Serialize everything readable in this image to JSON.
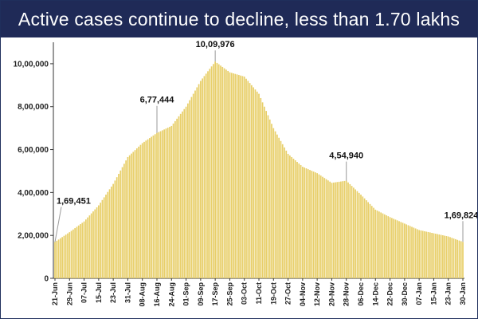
{
  "banner": {
    "title": "Active cases continue to decline, less than 1.70 lakhs"
  },
  "colors": {
    "bar": "#e8cf6a",
    "bar_edge": "#d8bd4e",
    "banner_bg": "#1f2a57",
    "annotation_line": "#999999"
  },
  "chart_data": {
    "type": "bar",
    "title": "Active cases continue to decline, less than 1.70 lakhs",
    "xlabel": "",
    "ylabel": "",
    "ylim": [
      0,
      1100000
    ],
    "yticks": [
      {
        "value": 0,
        "label": "0"
      },
      {
        "value": 200000,
        "label": "2,00,000"
      },
      {
        "value": 400000,
        "label": "4,00,000"
      },
      {
        "value": 600000,
        "label": "6,00,000"
      },
      {
        "value": 800000,
        "label": "8,00,000"
      },
      {
        "value": 1000000,
        "label": "10,00,000"
      }
    ],
    "xtick_labels": [
      "21-Jun",
      "29-Jun",
      "07-Jul",
      "15-Jul",
      "23-Jul",
      "31-Jul",
      "08-Aug",
      "16-Aug",
      "24-Aug",
      "01-Sep",
      "09-Sep",
      "17-Sep",
      "25-Sep",
      "03-Oct",
      "11-Oct",
      "19-Oct",
      "27-Oct",
      "04-Nov",
      "12-Nov",
      "20-Nov",
      "28-Nov",
      "06-Dec",
      "14-Dec",
      "22-Dec",
      "30-Dec",
      "07-Jan",
      "15-Jan",
      "23-Jan",
      "30-Jan"
    ],
    "keypoints": [
      {
        "label": "21-Jun",
        "value": 169451
      },
      {
        "label": "29-Jun",
        "value": 215000
      },
      {
        "label": "07-Jul",
        "value": 265000
      },
      {
        "label": "15-Jul",
        "value": 340000
      },
      {
        "label": "23-Jul",
        "value": 440000
      },
      {
        "label": "31-Jul",
        "value": 565000
      },
      {
        "label": "08-Aug",
        "value": 630000
      },
      {
        "label": "16-Aug",
        "value": 677444
      },
      {
        "label": "24-Aug",
        "value": 710000
      },
      {
        "label": "01-Sep",
        "value": 800000
      },
      {
        "label": "09-Sep",
        "value": 920000
      },
      {
        "label": "17-Sep",
        "value": 1009976
      },
      {
        "label": "25-Sep",
        "value": 960000
      },
      {
        "label": "03-Oct",
        "value": 940000
      },
      {
        "label": "11-Oct",
        "value": 860000
      },
      {
        "label": "19-Oct",
        "value": 700000
      },
      {
        "label": "27-Oct",
        "value": 580000
      },
      {
        "label": "04-Nov",
        "value": 520000
      },
      {
        "label": "12-Nov",
        "value": 490000
      },
      {
        "label": "20-Nov",
        "value": 445000
      },
      {
        "label": "28-Nov",
        "value": 454940
      },
      {
        "label": "06-Dec",
        "value": 390000
      },
      {
        "label": "14-Dec",
        "value": 320000
      },
      {
        "label": "22-Dec",
        "value": 285000
      },
      {
        "label": "30-Dec",
        "value": 255000
      },
      {
        "label": "07-Jan",
        "value": 225000
      },
      {
        "label": "15-Jan",
        "value": 210000
      },
      {
        "label": "23-Jan",
        "value": 195000
      },
      {
        "label": "30-Jan",
        "value": 169824
      }
    ],
    "annotations": [
      {
        "text": "1,69,451",
        "at": "21-Jun",
        "value": 169451
      },
      {
        "text": "6,77,444",
        "at": "16-Aug",
        "value": 677444
      },
      {
        "text": "10,09,976",
        "at": "17-Sep",
        "value": 1009976
      },
      {
        "text": "4,54,940",
        "at": "28-Nov",
        "value": 454940
      },
      {
        "text": "1,69,824",
        "at": "30-Jan",
        "value": 169824
      }
    ],
    "grid": false,
    "legend": "none"
  }
}
